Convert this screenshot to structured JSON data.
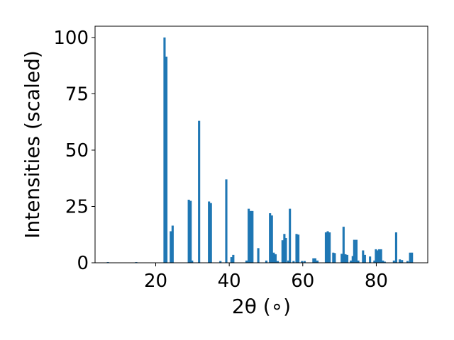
{
  "chart_data": {
    "type": "bar",
    "title": "",
    "xlabel": "2θ (∘)",
    "ylabel": "Intensities (scaled)",
    "xlim": [
      3.5,
      94
    ],
    "ylim": [
      0,
      105
    ],
    "xticks": [
      20,
      40,
      60,
      80
    ],
    "yticks": [
      0,
      25,
      50,
      75,
      100
    ],
    "grid": false,
    "bar_color": "#1f77b4",
    "bar_width": 0.6,
    "x": [
      7.0,
      14.7,
      22.4,
      22.9,
      24.1,
      24.6,
      29.0,
      29.5,
      29.9,
      31.8,
      34.5,
      35.0,
      37.6,
      39.2,
      40.6,
      41.1,
      44.7,
      45.3,
      45.8,
      46.3,
      47.9,
      50.1,
      51.1,
      51.6,
      52.1,
      52.6,
      53.2,
      54.5,
      55.0,
      55.4,
      56.1,
      56.5,
      57.5,
      58.3,
      58.8,
      59.8,
      60.5,
      62.9,
      63.4,
      64.0,
      66.3,
      66.8,
      67.3,
      68.3,
      68.7,
      70.6,
      71.1,
      71.6,
      72.1,
      73.1,
      73.6,
      74.0,
      74.6,
      75.1,
      76.4,
      76.9,
      78.3,
      79.5,
      79.9,
      80.4,
      80.8,
      81.3,
      81.8,
      82.3,
      84.8,
      85.4,
      86.4,
      87.0,
      88.5,
      89.2,
      89.7
    ],
    "values": [
      0.3,
      0.3,
      100,
      91.5,
      14,
      16.5,
      28,
      27.5,
      1,
      63,
      27.2,
      26.5,
      0.8,
      37,
      2.5,
      3.5,
      1,
      24,
      23,
      23,
      6.5,
      1,
      22,
      21,
      4.5,
      3.8,
      0.8,
      10,
      12.8,
      11,
      1,
      24,
      0.8,
      12.8,
      12.5,
      0.8,
      0.8,
      2,
      2,
      1,
      13.5,
      14,
      13.5,
      4.5,
      4.3,
      4,
      16,
      3.8,
      3.5,
      1,
      3,
      10.2,
      10.2,
      1,
      5.5,
      3.5,
      2.8,
      1,
      6,
      5.5,
      6,
      6,
      1,
      0.5,
      1,
      13.5,
      1.5,
      1.2,
      0.8,
      4.5,
      4.5
    ]
  }
}
